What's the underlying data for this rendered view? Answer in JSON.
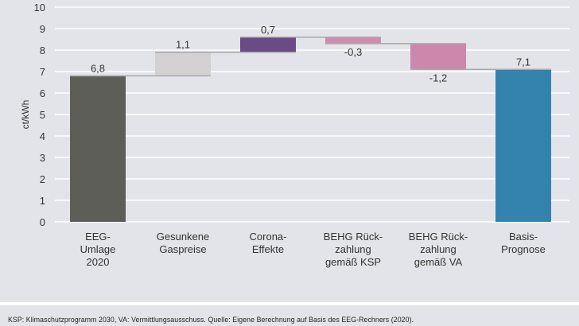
{
  "chart_data": {
    "type": "waterfall",
    "title": "",
    "xlabel": "",
    "ylabel": "ct/kWh",
    "ylim": [
      0,
      10
    ],
    "yticks": [
      "0",
      "1",
      "2",
      "3",
      "4",
      "5",
      "6",
      "7",
      "8",
      "9",
      "10"
    ],
    "grid": true,
    "categories": [
      [
        "EEG-",
        "Umlage",
        "2020"
      ],
      [
        "Gesunkene",
        "Gaspreise"
      ],
      [
        "Corona-",
        "Effekte"
      ],
      [
        "BEHG Rück-",
        "zahlung",
        "gemäß KSP"
      ],
      [
        "BEHG Rück-",
        "zahlung",
        "gemäß VA"
      ],
      [
        "Basis-",
        "Prognose"
      ]
    ],
    "values": [
      6.8,
      1.1,
      0.7,
      -0.3,
      -1.2,
      7.1
    ],
    "kinds": [
      "total",
      "delta",
      "delta",
      "delta",
      "delta",
      "total"
    ],
    "data_labels": [
      "6,8",
      "1,1",
      "0,7",
      "-0,3",
      "-1,2",
      "7,1"
    ],
    "colors": [
      "#5e5e58",
      "#d3d1d1",
      "#6b4a86",
      "#d08bb0",
      "#cc87ac",
      "#3483ae"
    ]
  },
  "footer": {
    "note": "KSP: Klimaschutzprogramm 2030, VA: Vermittlungsausschuss. Quelle: Eigene Berechnung auf Basis des EEG-Rechners (2020)."
  }
}
